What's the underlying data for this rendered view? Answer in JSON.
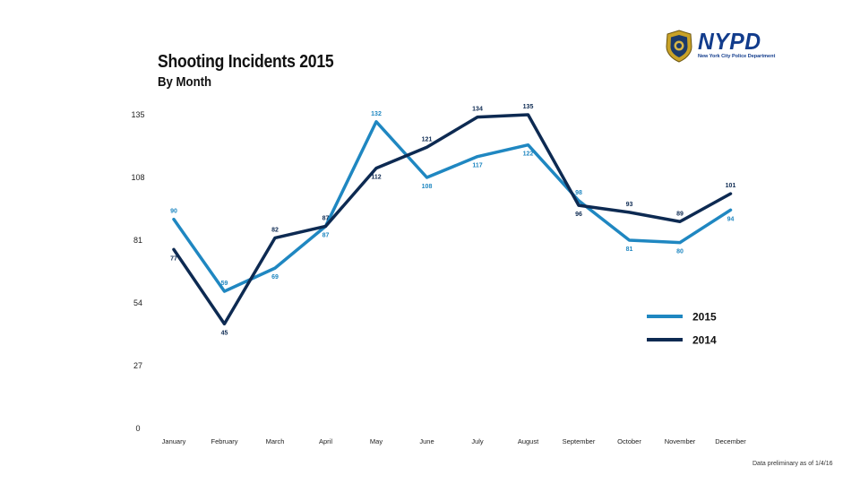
{
  "logo": {
    "word": "NYPD",
    "subtitle": "New York City Police Department"
  },
  "footnote": "Data preliminary as of 1/4/16",
  "chart_data": {
    "type": "line",
    "title": "Shooting Incidents 2015",
    "subtitle": "By Month",
    "xlabel": "",
    "ylabel": "",
    "categories": [
      "January",
      "February",
      "March",
      "April",
      "May",
      "June",
      "July",
      "August",
      "September",
      "October",
      "November",
      "December"
    ],
    "y_ticks": [
      0,
      27,
      54,
      81,
      108,
      135
    ],
    "ylim": [
      0,
      135
    ],
    "grid": false,
    "legend_position": "right",
    "series": [
      {
        "name": "2015",
        "color": "#1f87c1",
        "values": [
          90,
          59,
          69,
          87,
          132,
          108,
          117,
          122,
          98,
          81,
          80,
          94
        ]
      },
      {
        "name": "2014",
        "color": "#0d2a52",
        "values": [
          77,
          45,
          82,
          87,
          112,
          121,
          134,
          135,
          96,
          93,
          89,
          101
        ]
      }
    ]
  }
}
